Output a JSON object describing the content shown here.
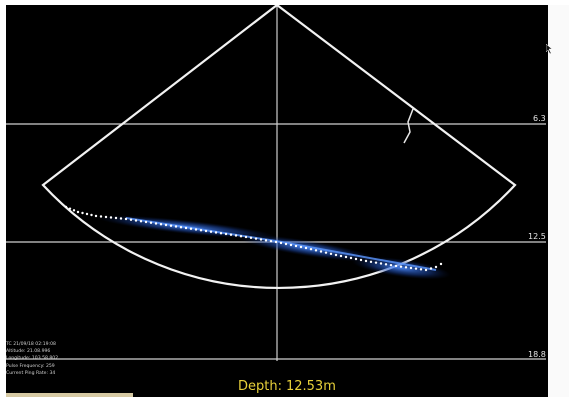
{
  "sonar": {
    "depth_scale": [
      "6.3",
      "12.5",
      "18.8"
    ],
    "depth_label": "Depth:",
    "depth_value": "12.53m",
    "colors": {
      "fan": "#ffffff",
      "echo": "#2d6fe0",
      "track": "#ffffff",
      "depth_text": "#e8d13a"
    }
  },
  "info_panel": {
    "lines": [
      "TC 21/09/18  02:19:08",
      "Altitude: 21.08.996",
      "Longitude: 103.58.802",
      "Pulse Frequency: 259",
      "Current Ping Rate: 34"
    ]
  },
  "icons": {
    "cursor": "mouse-cursor-icon"
  }
}
